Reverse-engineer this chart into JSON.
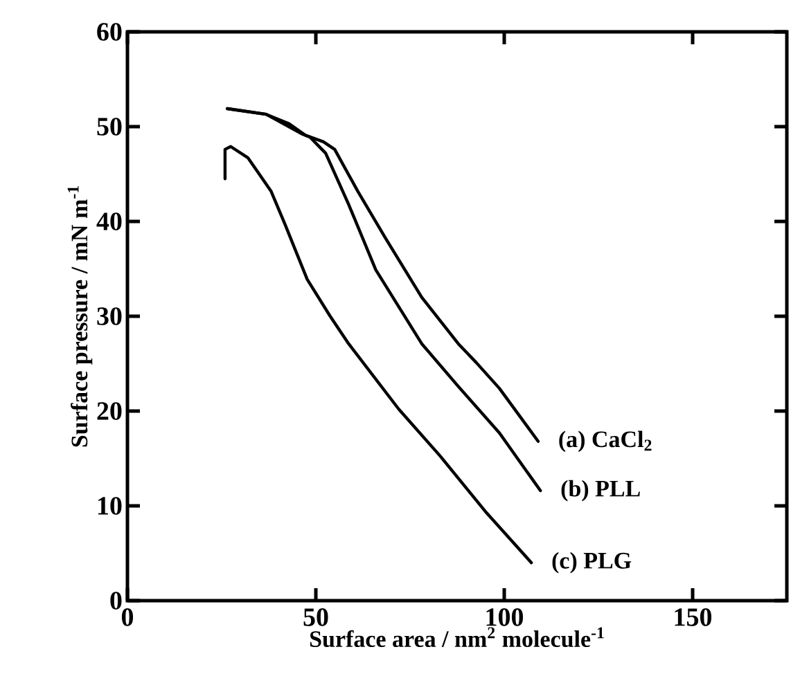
{
  "chart_data": {
    "type": "line",
    "xlabel": "Surface area / nm$^{2}$ molecule$^{-1}$",
    "ylabel": "Surface pressure / mN m$^{-1}$",
    "xlim": [
      0,
      175
    ],
    "ylim": [
      0,
      60
    ],
    "xticks": [
      0,
      50,
      100,
      150
    ],
    "yticks": [
      0,
      10,
      20,
      30,
      40,
      50,
      60
    ],
    "line_style": "solid",
    "series": [
      {
        "name": "(a) CaCl$_{2}$",
        "color": "#000000",
        "x": [
          26.5,
          36.8,
          42.9,
          47.2,
          52,
          55,
          61.1,
          68.4,
          78.1,
          87.8,
          92.6,
          98.7,
          109
        ],
        "values": [
          51.9,
          51.3,
          50.3,
          49.1,
          48.4,
          47.6,
          43.2,
          38.3,
          32,
          27.1,
          25.1,
          22.4,
          16.8
        ]
      },
      {
        "name": "(b) PLL",
        "color": "#000000",
        "x": [
          26.5,
          36.8,
          46.5,
          48.4,
          52.6,
          58.7,
          65.9,
          78.1,
          87.8,
          98.7,
          109.6
        ],
        "values": [
          51.9,
          51.3,
          49.2,
          48.9,
          47.2,
          41.8,
          34.9,
          27.1,
          22.6,
          17.7,
          11.6
        ]
      },
      {
        "name": "(c) PLG",
        "color": "#000000",
        "x": [
          25.9,
          25.9,
          27.4,
          32,
          38.1,
          41.7,
          47.7,
          53.8,
          58.7,
          72,
          82.9,
          95,
          107.2
        ],
        "values": [
          44.5,
          47.6,
          47.9,
          46.7,
          43.2,
          39.8,
          33.9,
          30,
          27.1,
          20.2,
          15.3,
          9.4,
          4.0
        ]
      }
    ]
  }
}
